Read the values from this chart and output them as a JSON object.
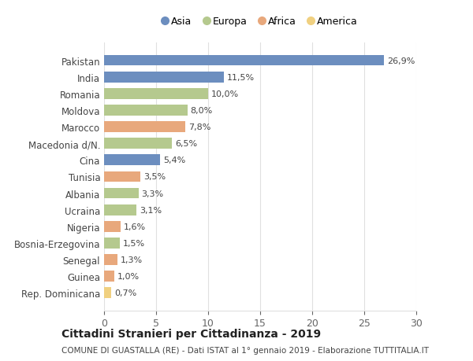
{
  "countries": [
    "Pakistan",
    "India",
    "Romania",
    "Moldova",
    "Marocco",
    "Macedonia d/N.",
    "Cina",
    "Tunisia",
    "Albania",
    "Ucraina",
    "Nigeria",
    "Bosnia-Erzegovina",
    "Senegal",
    "Guinea",
    "Rep. Dominicana"
  ],
  "values": [
    26.9,
    11.5,
    10.0,
    8.0,
    7.8,
    6.5,
    5.4,
    3.5,
    3.3,
    3.1,
    1.6,
    1.5,
    1.3,
    1.0,
    0.7
  ],
  "labels": [
    "26,9%",
    "11,5%",
    "10,0%",
    "8,0%",
    "7,8%",
    "6,5%",
    "5,4%",
    "3,5%",
    "3,3%",
    "3,1%",
    "1,6%",
    "1,5%",
    "1,3%",
    "1,0%",
    "0,7%"
  ],
  "continents": [
    "Asia",
    "Asia",
    "Europa",
    "Europa",
    "Africa",
    "Europa",
    "Asia",
    "Africa",
    "Europa",
    "Europa",
    "Africa",
    "Europa",
    "Africa",
    "Africa",
    "America"
  ],
  "colors": {
    "Asia": "#6c8ebf",
    "Europa": "#b5c98e",
    "Africa": "#e8a87c",
    "America": "#f0d080"
  },
  "legend_order": [
    "Asia",
    "Europa",
    "Africa",
    "America"
  ],
  "title": "Cittadini Stranieri per Cittadinanza - 2019",
  "subtitle": "COMUNE DI GUASTALLA (RE) - Dati ISTAT al 1° gennaio 2019 - Elaborazione TUTTITALIA.IT",
  "xlim": [
    0,
    30
  ],
  "xticks": [
    0,
    5,
    10,
    15,
    20,
    25,
    30
  ],
  "background_color": "#ffffff",
  "grid_color": "#e0e0e0",
  "bar_height": 0.65
}
